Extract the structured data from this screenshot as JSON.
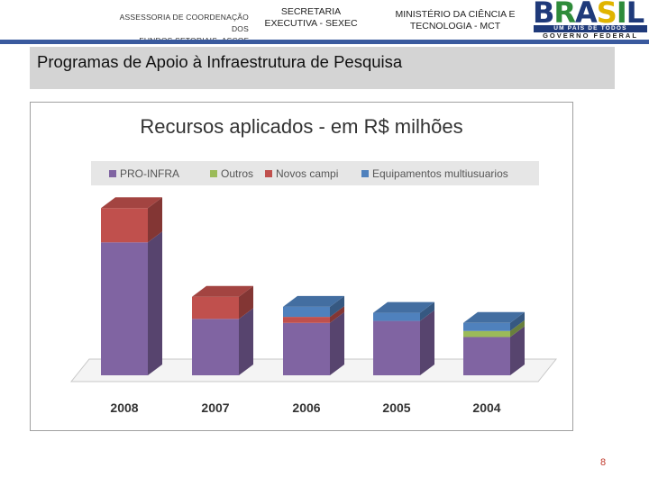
{
  "header": {
    "left_line1": "ASSESSORIA DE COORDENAÇÃO DOS",
    "left_line2": "FUNDOS SETORIAIS. ASCOF",
    "mid_line1": "SECRETARIA",
    "mid_line2": "EXECUTIVA - SEXEC",
    "right_line1": "MINISTÉRIO DA CIÊNCIA E",
    "right_line2": "TECNOLOGIA - MCT",
    "logo_word": "BRASIL",
    "logo_tagline": "UM PAÍS DE TODOS",
    "logo_gov": "GOVERNO FEDERAL"
  },
  "page_title": "Programas de Apoio à Infraestrutura de Pesquisa",
  "page_number": "8",
  "colors": {
    "pro_infra": "#8064a2",
    "outros": "#9bbb59",
    "novos_campi": "#c0504d",
    "equipamentos": "#4f81bd",
    "title_bar": "#d4d4d4",
    "header_strip": "#3a5a9e"
  },
  "chart_data": {
    "type": "bar",
    "stacked": true,
    "three_d": true,
    "title": "Recursos aplicados - em R$ milhões",
    "categories": [
      "2008",
      "2007",
      "2006",
      "2005",
      "2004"
    ],
    "series": [
      {
        "name": "PRO-INFRA",
        "color": "#8064a2",
        "values": [
          330,
          140,
          130,
          135,
          95
        ]
      },
      {
        "name": "Outros",
        "color": "#9bbb59",
        "values": [
          0,
          0,
          0,
          0,
          15
        ]
      },
      {
        "name": "Novos campi",
        "color": "#c0504d",
        "values": [
          85,
          55,
          15,
          0,
          0
        ]
      },
      {
        "name": "Equipamentos multiusuarios",
        "color": "#4f81bd",
        "values": [
          0,
          0,
          25,
          20,
          20
        ]
      }
    ],
    "ylim": [
      0,
      420
    ],
    "xlabel": "",
    "ylabel": "",
    "legend_position": "top",
    "grid": false
  }
}
